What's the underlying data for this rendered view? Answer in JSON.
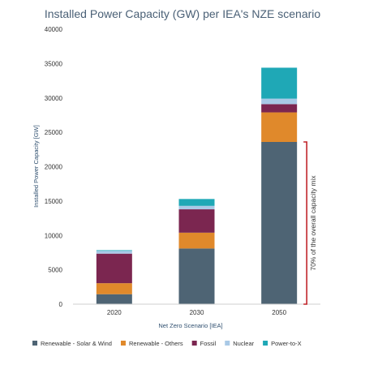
{
  "chart_data": {
    "type": "bar",
    "stacked": true,
    "title": "Installed Power Capacity (GW) per IEA's NZE scenario",
    "xlabel": "Net Zero Scenario [IEA]",
    "ylabel": "Installed Power Capacity [GW]",
    "ylim": [
      0,
      40000
    ],
    "yticks": [
      0,
      5000,
      10000,
      15000,
      20000,
      25000,
      30000,
      35000,
      40000
    ],
    "categories": [
      "2020",
      "2030",
      "2050"
    ],
    "series": [
      {
        "name": "Renewable - Solar & Wind",
        "color": "#4e6474",
        "values": [
          1450,
          8100,
          23600
        ]
      },
      {
        "name": "Renewable - Others",
        "color": "#e0892b",
        "values": [
          1600,
          2300,
          4300
        ]
      },
      {
        "name": "Fossil",
        "color": "#7b2650",
        "values": [
          4300,
          3400,
          1200
        ]
      },
      {
        "name": "Nuclear",
        "color": "#a9c9e6",
        "values": [
          400,
          500,
          800
        ]
      },
      {
        "name": "Power-to-X",
        "color": "#1fa8b6",
        "values": [
          100,
          1000,
          4500
        ]
      }
    ],
    "grid": false,
    "legend_position": "bottom",
    "annotation": {
      "text": "70% of the overall capacity mix",
      "category": "2050",
      "color": "#c0252a"
    }
  }
}
